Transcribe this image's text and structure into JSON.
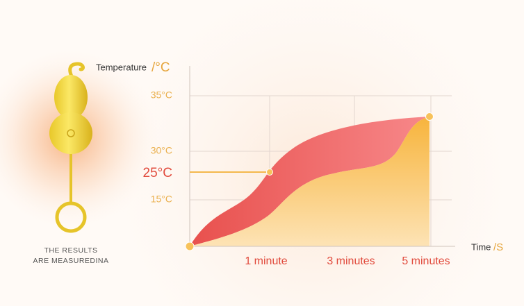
{
  "axes": {
    "y_label": "Temperature",
    "y_unit": "/°C",
    "x_label": "Time",
    "x_unit": "/S",
    "y_labels": [
      "35°C",
      "30°C",
      "25°C",
      "15°C"
    ],
    "x_labels": [
      "1 minute",
      "3 minutes",
      "5 minutes"
    ]
  },
  "caption": [
    "THE RESULTS",
    "ARE MEASUREDINA"
  ]
}
